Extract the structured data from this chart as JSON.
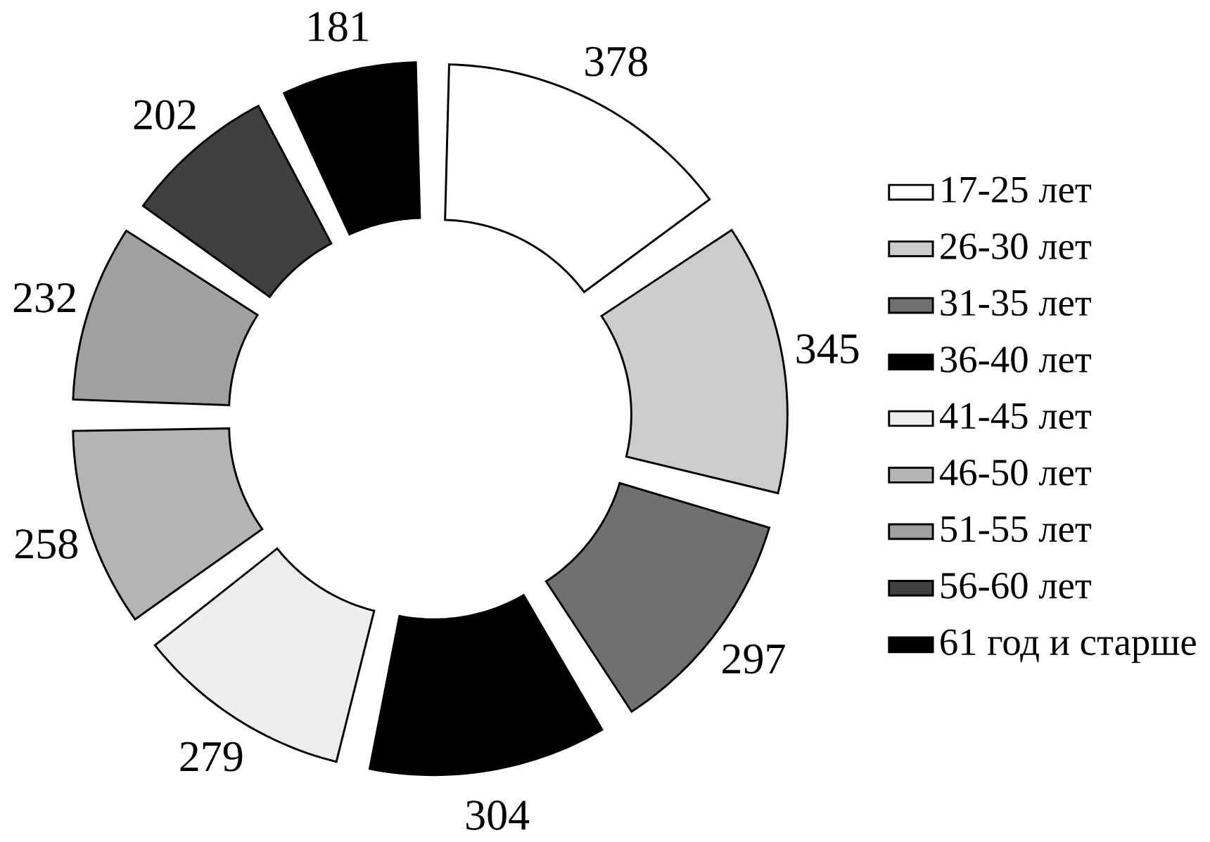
{
  "chart_data": {
    "type": "donut",
    "categories": [
      "17-25 лет",
      "26-30 лет",
      "31-35 лет",
      "36-40 лет",
      "41-45 лет",
      "46-50 лет",
      "51-55 лет",
      "56-60 лет",
      "61 год и старше"
    ],
    "values": [
      378,
      345,
      297,
      304,
      279,
      258,
      232,
      202,
      181
    ],
    "colors": [
      "#ffffff",
      "#cccccc",
      "#707070",
      "#000000",
      "#eeeeee",
      "#b4b4b4",
      "#a0a0a0",
      "#404040",
      "#000000"
    ],
    "data_labels": true,
    "legend": "right"
  }
}
